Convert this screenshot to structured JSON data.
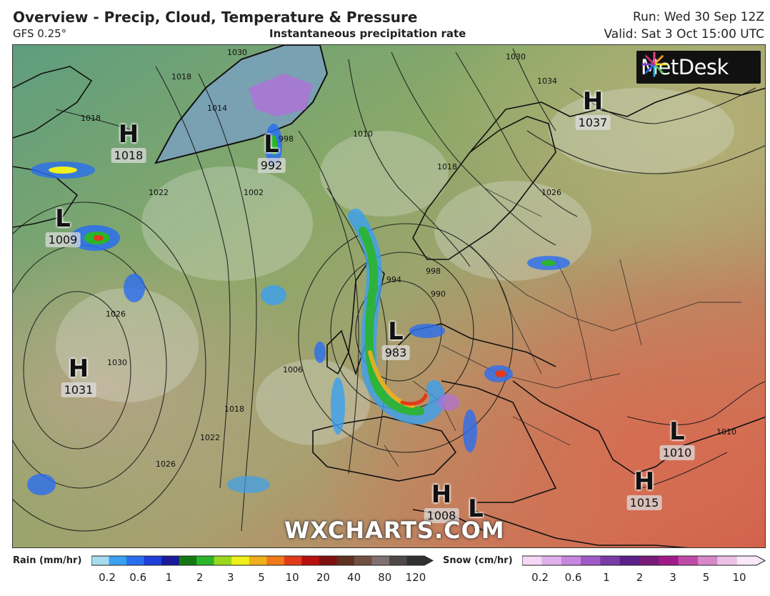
{
  "header": {
    "title": "Overview - Precip, Cloud, Temperature & Pressure",
    "model": "GFS 0.25°",
    "subtitle": "Instantaneous precipitation rate",
    "run": "Run: Wed 30 Sep 12Z",
    "valid": "Valid: Sat 3 Oct 15:00 UTC"
  },
  "logo": {
    "name": "MetDesk"
  },
  "watermark": "WXCHARTS.COM",
  "pressure_centers": [
    {
      "letter": "H",
      "value": "1018"
    },
    {
      "letter": "L",
      "value": "992"
    },
    {
      "letter": "H",
      "value": "1037"
    },
    {
      "letter": "L",
      "value": "1009"
    },
    {
      "letter": "L",
      "value": "983"
    },
    {
      "letter": "H",
      "value": "1031"
    },
    {
      "letter": "L",
      "value": "1010"
    },
    {
      "letter": "H",
      "value": "1015"
    },
    {
      "letter": "H",
      "value": "1008"
    },
    {
      "letter": "L",
      "value": ""
    }
  ],
  "isobar_labels": [
    "1018",
    "1026",
    "1022",
    "1018",
    "1014",
    "1030",
    "998",
    "1010",
    "1018",
    "1030",
    "1034",
    "1026",
    "1002",
    "994",
    "998",
    "990",
    "1006",
    "1018",
    "1022",
    "1026",
    "1030",
    "1010"
  ],
  "legend": {
    "rain_title": "Rain (mm/hr)",
    "rain_ticks": [
      "0.2",
      "0.6",
      "1",
      "2",
      "3",
      "5",
      "10",
      "20",
      "40",
      "80",
      "120"
    ],
    "rain_colors": [
      "#a6dcee",
      "#3aa0f0",
      "#2a6ef0",
      "#1f3fd8",
      "#1a1a9a",
      "#137a13",
      "#2ab52a",
      "#9ad81e",
      "#f0f01a",
      "#f0b01a",
      "#f07a1a",
      "#e03a1a",
      "#b81010",
      "#801010",
      "#603020",
      "#705040",
      "#807070",
      "#504848",
      "#303030"
    ],
    "snow_title": "Snow (cm/hr)",
    "snow_ticks": [
      "0.2",
      "0.6",
      "1",
      "2",
      "3",
      "5",
      "10"
    ],
    "snow_colors": [
      "#f5d8f5",
      "#e0b0ec",
      "#c886e0",
      "#a05ac8",
      "#7a3aa8",
      "#5a2088",
      "#781a78",
      "#a01a8a",
      "#c04aa8",
      "#d888c8",
      "#ecc0e4",
      "#f8e8f8"
    ]
  }
}
